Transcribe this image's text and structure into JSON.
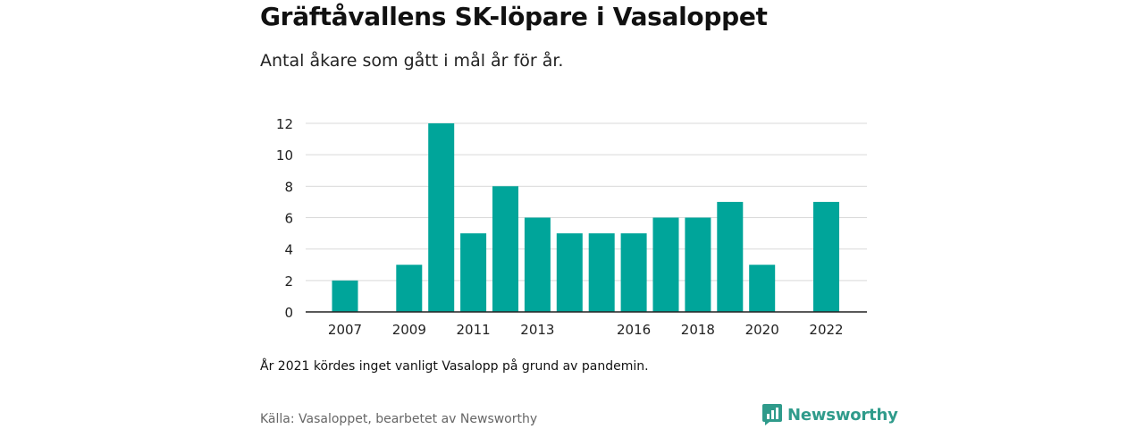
{
  "header": {
    "title": "Gräftåvallens SK-löpare i Vasaloppet",
    "subtitle": "Antal åkare som gått i mål år för år."
  },
  "footer": {
    "note": "År 2021 kördes inget vanligt Vasalopp på grund av pandemin.",
    "source": "Källa: Vasaloppet, bearbetet av Newsworthy",
    "brand": "Newsworthy"
  },
  "colors": {
    "bar": "#00a59a",
    "brand": "#2f9b8b",
    "grid": "#d9d9d9"
  },
  "chart_data": {
    "type": "bar",
    "categories": [
      2007,
      2008,
      2009,
      2010,
      2011,
      2012,
      2013,
      2014,
      2015,
      2016,
      2017,
      2018,
      2019,
      2020,
      2021,
      2022
    ],
    "values": [
      2,
      0,
      3,
      12,
      5,
      8,
      6,
      5,
      5,
      5,
      6,
      6,
      7,
      3,
      null,
      7
    ],
    "x_tick_labels": [
      "2007",
      "2009",
      "2011",
      "2013",
      "2016",
      "2018",
      "2020",
      "2022"
    ],
    "y_ticks": [
      0,
      2,
      4,
      6,
      8,
      10,
      12
    ],
    "ylim": [
      0,
      12
    ],
    "grid": true,
    "xlabel": "",
    "ylabel": ""
  }
}
